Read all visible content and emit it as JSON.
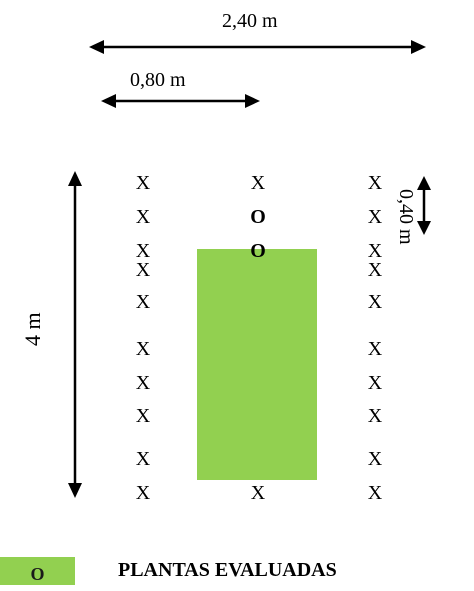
{
  "dimensions": {
    "total_width": "2,40 m",
    "row_spacing": "0,80 m",
    "plant_spacing": "0,40 m",
    "plot_length": "4 m"
  },
  "plant_grid": {
    "columns": 3,
    "rows": 10,
    "plant_symbol": "X",
    "evaluated_symbol": "O",
    "evaluated_positions": [
      [
        1,
        1
      ],
      [
        2,
        1
      ]
    ],
    "area_covered_by_block": {
      "rows": [
        3,
        8
      ],
      "column": 1
    },
    "block_color": "#92d050"
  },
  "legend": {
    "swatch_symbol": "O",
    "swatch_color": "#92d050",
    "label": "PLANTAS EVALUADAS"
  }
}
